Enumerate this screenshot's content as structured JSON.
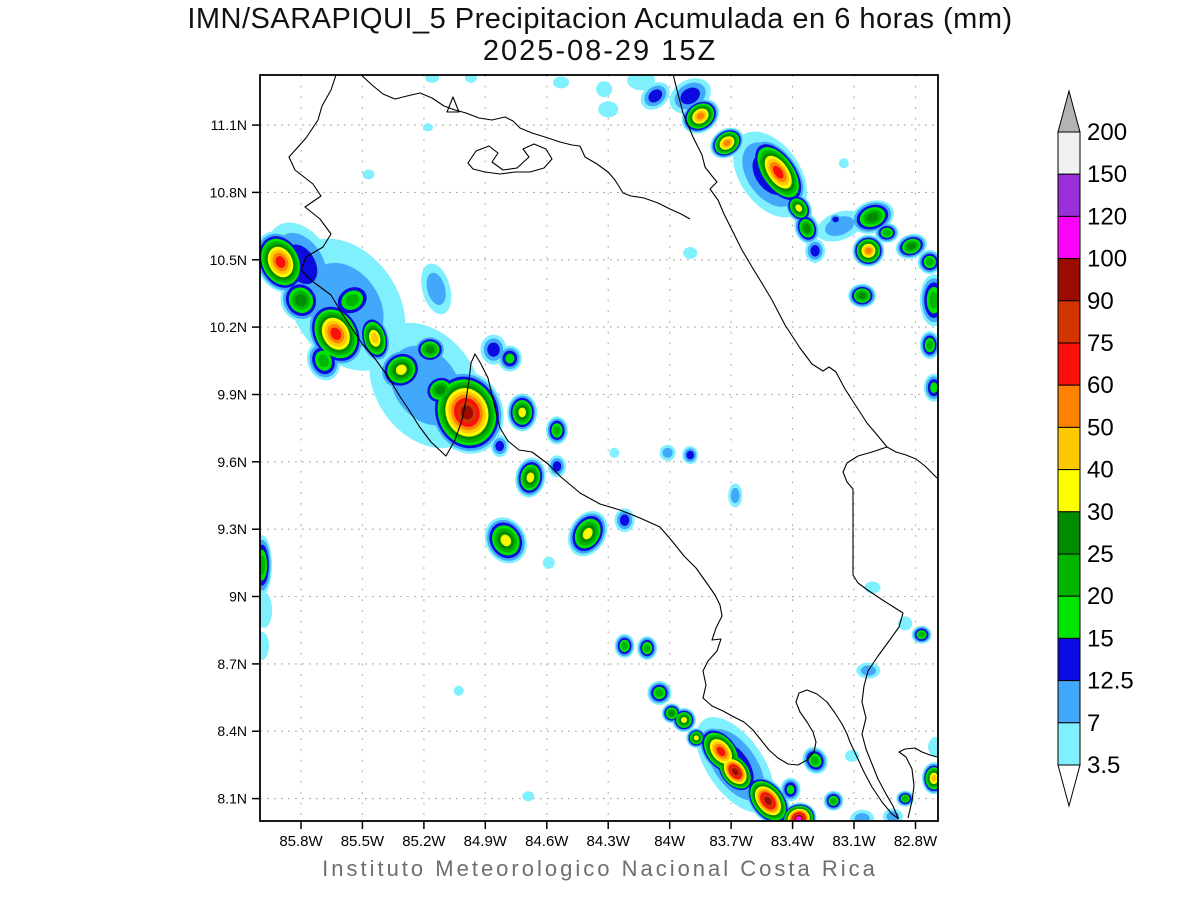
{
  "header": {
    "title_line1": "IMN/SARAPIQUI_5 Precipitacion Acumulada en 6 horas (mm)",
    "title_line2": "2025-08-29 15Z"
  },
  "footer": {
    "credit": "Instituto Meteorologico Nacional Costa Rica"
  },
  "chart_data": {
    "type": "heatmap",
    "subtype": "filled-contour precipitation map",
    "title": "IMN/SARAPIQUI_5 Precipitacion Acumulada en 6 horas (mm)",
    "valid_time": "2025-08-29 15Z",
    "units": "mm",
    "region": "Costa Rica",
    "lon_range": [
      -86.0,
      -82.69
    ],
    "lat_range": [
      8.0,
      11.323
    ],
    "lon_tick_labels": [
      "85.8W",
      "85.5W",
      "85.2W",
      "84.9W",
      "84.6W",
      "84.3W",
      "84W",
      "83.7W",
      "83.4W",
      "83.1W",
      "82.8W"
    ],
    "lon_tick_values": [
      -85.8,
      -85.5,
      -85.2,
      -84.9,
      -84.6,
      -84.3,
      -84.0,
      -83.7,
      -83.4,
      -83.1,
      -82.8
    ],
    "lat_tick_labels": [
      "11.1N",
      "10.8N",
      "10.5N",
      "10.2N",
      "9.9N",
      "9.6N",
      "9.3N",
      "9N",
      "8.7N",
      "8.4N",
      "8.1N"
    ],
    "lat_tick_values": [
      11.1,
      10.8,
      10.5,
      10.2,
      9.9,
      9.6,
      9.3,
      9.0,
      8.7,
      8.4,
      8.1
    ],
    "grid": true,
    "grid_color": "#a9a9a9",
    "levels": [
      3.5,
      7,
      12.5,
      15,
      20,
      25,
      30,
      40,
      50,
      60,
      75,
      90,
      100,
      120,
      150
    ],
    "colors": [
      "#80f0ff",
      "#41a8fb",
      "#0a0ae1",
      "#00e400",
      "#00b400",
      "#008c00",
      "#fdfd00",
      "#fec900",
      "#ff8200",
      "#fb0f0b",
      "#d23500",
      "#9c0b00",
      "#fb02fb",
      "#9a2fd9",
      "#f0f0f0"
    ],
    "colorbar": {
      "position": "right",
      "boundary_labels_top_to_bottom": [
        "200",
        "150",
        "120",
        "100",
        "90",
        "75",
        "60",
        "50",
        "40",
        "30",
        "25",
        "20",
        "15",
        "12.5",
        "7",
        "3.5"
      ],
      "over_arrow_color": "#b3b3b3",
      "under_arrow_color": "#ffffff"
    },
    "cells_format": [
      "lon_deg_east",
      "lat_deg_north",
      "peak_level_mm",
      "rx_px",
      "ry_px",
      "rotation_deg"
    ],
    "cells": [
      [
        -85.58,
        10.3,
        7,
        52,
        72,
        -35
      ],
      [
        -85.19,
        9.94,
        7,
        50,
        68,
        -35
      ],
      [
        -85.8,
        10.48,
        12.5,
        30,
        45,
        -30
      ],
      [
        -85.9,
        10.49,
        60,
        24,
        32,
        -25
      ],
      [
        -85.8,
        10.32,
        25,
        20,
        22,
        -30
      ],
      [
        -85.63,
        10.17,
        60,
        26,
        34,
        -30
      ],
      [
        -85.44,
        10.15,
        40,
        15,
        24,
        -15
      ],
      [
        -85.55,
        10.32,
        20,
        22,
        18,
        -30
      ],
      [
        -85.69,
        10.05,
        20,
        16,
        20,
        -20
      ],
      [
        -85.31,
        10.01,
        30,
        22,
        20,
        -30
      ],
      [
        -85.17,
        10.1,
        25,
        16,
        14,
        0
      ],
      [
        -84.99,
        9.82,
        90,
        36,
        42,
        -20
      ],
      [
        -85.12,
        9.92,
        25,
        18,
        16,
        -30
      ],
      [
        -85.14,
        10.37,
        7,
        14,
        26,
        -15
      ],
      [
        -84.86,
        10.1,
        12.5,
        13,
        15,
        0
      ],
      [
        -84.78,
        10.06,
        15,
        12,
        13,
        0
      ],
      [
        -84.72,
        9.82,
        30,
        15,
        19,
        0
      ],
      [
        -84.83,
        9.67,
        12.5,
        9,
        11,
        0
      ],
      [
        -84.68,
        9.53,
        30,
        15,
        20,
        10
      ],
      [
        -84.55,
        9.74,
        20,
        11,
        14,
        0
      ],
      [
        -84.55,
        9.58,
        12.5,
        9,
        11,
        0
      ],
      [
        -84.8,
        9.25,
        30,
        20,
        24,
        -30
      ],
      [
        -84.4,
        9.28,
        30,
        18,
        24,
        30
      ],
      [
        -84.59,
        9.15,
        3.5,
        6,
        6,
        0
      ],
      [
        -84.22,
        9.34,
        12.5,
        10,
        12,
        0
      ],
      [
        -84.27,
        9.64,
        3.5,
        5,
        5,
        0
      ],
      [
        -84.01,
        9.64,
        7,
        8,
        8,
        0
      ],
      [
        -83.9,
        9.63,
        12.5,
        8,
        9,
        0
      ],
      [
        -83.68,
        9.45,
        7,
        7,
        12,
        0
      ],
      [
        -85.99,
        9.14,
        20,
        10,
        30,
        0
      ],
      [
        -85.98,
        8.94,
        3.5,
        8,
        18,
        0
      ],
      [
        -85.99,
        8.78,
        3.5,
        7,
        14,
        0
      ],
      [
        -85.16,
        11.31,
        3.5,
        7,
        5,
        0
      ],
      [
        -84.97,
        11.31,
        3.5,
        6,
        5,
        0
      ],
      [
        -85.18,
        11.09,
        3.5,
        5,
        4,
        0
      ],
      [
        -85.47,
        10.88,
        3.5,
        6,
        5,
        0
      ],
      [
        -84.53,
        11.29,
        3.5,
        8,
        6,
        0
      ],
      [
        -84.32,
        11.26,
        3.5,
        8,
        8,
        0
      ],
      [
        -84.3,
        11.17,
        3.5,
        10,
        8,
        0
      ],
      [
        -84.14,
        11.3,
        3.5,
        14,
        10,
        0
      ],
      [
        -84.07,
        11.23,
        12.5,
        16,
        12,
        -40
      ],
      [
        -83.9,
        11.23,
        12.5,
        22,
        16,
        -30
      ],
      [
        -83.85,
        11.14,
        50,
        20,
        16,
        -35
      ],
      [
        -83.72,
        11.02,
        50,
        18,
        14,
        -35
      ],
      [
        -83.51,
        10.88,
        12.5,
        30,
        48,
        -35
      ],
      [
        -83.47,
        10.89,
        60,
        20,
        38,
        -35
      ],
      [
        -83.37,
        10.73,
        30,
        12,
        16,
        -35
      ],
      [
        -83.33,
        10.64,
        25,
        12,
        16,
        -20
      ],
      [
        -83.29,
        10.54,
        12.5,
        10,
        12,
        0
      ],
      [
        -83.17,
        10.65,
        7,
        24,
        14,
        -20
      ],
      [
        -83.15,
        10.93,
        3.5,
        5,
        5,
        0
      ],
      [
        -83.9,
        10.53,
        3.5,
        7,
        6,
        0
      ],
      [
        -83.19,
        10.68,
        12.5,
        7,
        6,
        0
      ],
      [
        -83.01,
        10.69,
        25,
        22,
        16,
        -20
      ],
      [
        -82.94,
        10.62,
        20,
        12,
        10,
        0
      ],
      [
        -83.03,
        10.54,
        50,
        16,
        16,
        0
      ],
      [
        -82.82,
        10.56,
        25,
        16,
        12,
        -20
      ],
      [
        -82.73,
        10.49,
        20,
        12,
        12,
        0
      ],
      [
        -83.06,
        10.34,
        25,
        14,
        12,
        0
      ],
      [
        -82.71,
        10.32,
        20,
        14,
        26,
        0
      ],
      [
        -82.73,
        10.12,
        20,
        10,
        14,
        0
      ],
      [
        -82.71,
        9.93,
        15,
        10,
        14,
        0
      ],
      [
        -83.01,
        9.04,
        3.5,
        8,
        6,
        0
      ],
      [
        -82.85,
        8.88,
        3.5,
        7,
        7,
        0
      ],
      [
        -82.77,
        8.83,
        20,
        10,
        9,
        0
      ],
      [
        -84.22,
        8.78,
        20,
        10,
        12,
        0
      ],
      [
        -84.11,
        8.77,
        20,
        10,
        12,
        0
      ],
      [
        -84.05,
        8.57,
        20,
        12,
        12,
        0
      ],
      [
        -83.99,
        8.48,
        25,
        10,
        10,
        0
      ],
      [
        -83.93,
        8.45,
        30,
        12,
        12,
        0
      ],
      [
        -83.87,
        8.37,
        30,
        10,
        10,
        0
      ],
      [
        -83.68,
        8.25,
        12.5,
        28,
        55,
        -35
      ],
      [
        -83.75,
        8.31,
        60,
        18,
        28,
        -38
      ],
      [
        -83.68,
        8.22,
        90,
        16,
        24,
        -38
      ],
      [
        -83.52,
        8.09,
        90,
        18,
        28,
        -38
      ],
      [
        -83.37,
        8.01,
        100,
        18,
        16,
        -20
      ],
      [
        -83.41,
        8.14,
        15,
        10,
        12,
        0
      ],
      [
        -83.29,
        8.27,
        20,
        12,
        14,
        -30
      ],
      [
        -83.2,
        8.09,
        20,
        10,
        10,
        0
      ],
      [
        -83.11,
        8.29,
        3.5,
        7,
        6,
        0
      ],
      [
        -83.06,
        8.01,
        7,
        12,
        9,
        0
      ],
      [
        -83.03,
        8.67,
        7,
        12,
        8,
        0
      ],
      [
        -82.85,
        8.1,
        20,
        9,
        8,
        0
      ],
      [
        -82.91,
        8.02,
        7,
        10,
        8,
        0
      ],
      [
        -82.71,
        8.19,
        40,
        12,
        16,
        0
      ],
      [
        -82.7,
        8.33,
        3.5,
        8,
        10,
        0
      ],
      [
        -85.03,
        8.58,
        3.5,
        5,
        5,
        0
      ],
      [
        -84.69,
        8.11,
        3.5,
        6,
        5,
        0
      ]
    ]
  }
}
